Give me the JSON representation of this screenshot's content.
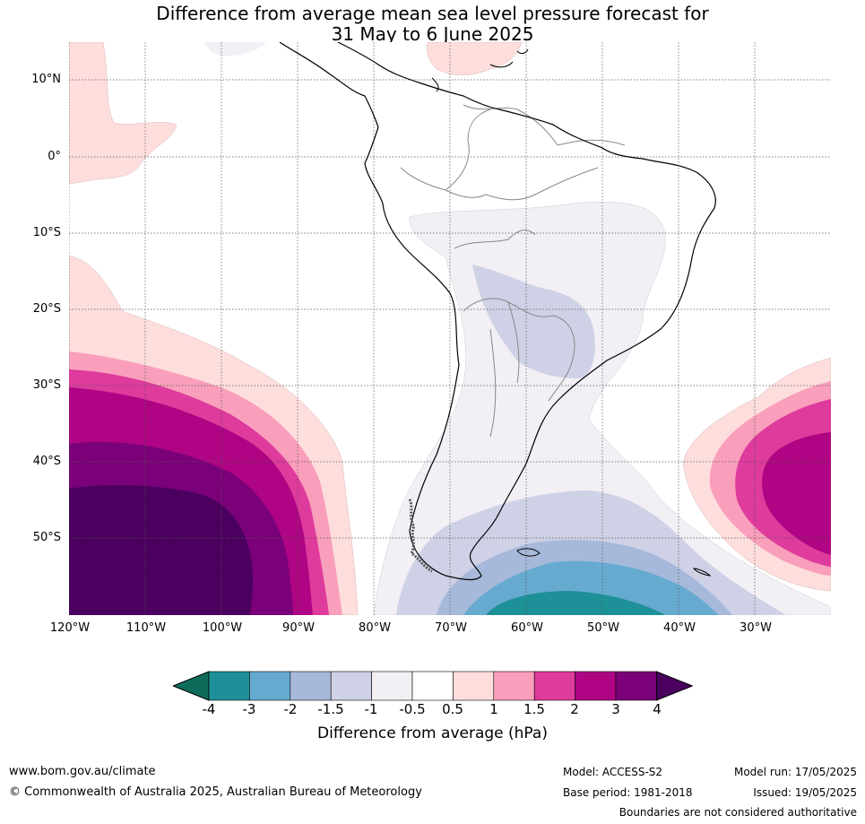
{
  "title_line1": "Difference from average mean sea level pressure forecast for",
  "title_line2": "31 May to 6 June 2025",
  "lat_labels": [
    "10°N",
    "0°",
    "10°S",
    "20°S",
    "30°S",
    "40°S",
    "50°S"
  ],
  "lon_labels": [
    "120°W",
    "110°W",
    "100°W",
    "90°W",
    "80°W",
    "70°W",
    "60°W",
    "50°W",
    "40°W",
    "30°W"
  ],
  "colorbar": {
    "ticks": [
      "-4",
      "-3",
      "-2",
      "-1.5",
      "-1",
      "-0.5",
      "0.5",
      "1",
      "1.5",
      "2",
      "3",
      "4"
    ],
    "colors": [
      "#0c6b5a",
      "#1e9098",
      "#67aad0",
      "#a7b9da",
      "#cfd1e6",
      "#f2eff5",
      "#ffffff",
      "#fddedd",
      "#f99fbb",
      "#de3b9d",
      "#af0483",
      "#7a0179",
      "#4b005f"
    ],
    "label": "Difference from average (hPa)"
  },
  "footer": {
    "website": "www.bom.gov.au/climate",
    "copyright": "© Commonwealth of Australia 2025, Australian Bureau of Meteorology",
    "model": "Model: ACCESS-S2",
    "base_period": "Base period: 1981-2018",
    "model_run": "Model run: 17/05/2025",
    "issued": "Issued: 19/05/2025",
    "disclaimer": "Boundaries are not considered authoritative"
  }
}
